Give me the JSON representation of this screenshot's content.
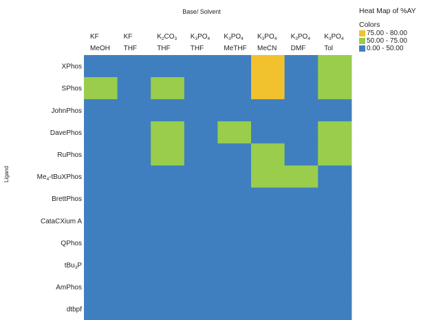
{
  "chart_data": {
    "type": "heatmap",
    "title": "Base/ Solvent",
    "ylabel": "Ligand",
    "columns": [
      {
        "base": "KF",
        "base_parts": [
          "KF"
        ],
        "solvent": "MeOH"
      },
      {
        "base": "KF",
        "base_parts": [
          "KF"
        ],
        "solvent": "THF"
      },
      {
        "base": "K2CO3",
        "base_parts": [
          "K",
          "2",
          "CO",
          "3"
        ],
        "solvent": "THF"
      },
      {
        "base": "K3PO4",
        "base_parts": [
          "K",
          "3",
          "PO",
          "4"
        ],
        "solvent": "THF"
      },
      {
        "base": "K3PO4",
        "base_parts": [
          "K",
          "3",
          "PO",
          "4"
        ],
        "solvent": "MeTHF"
      },
      {
        "base": "K3PO4",
        "base_parts": [
          "K",
          "3",
          "PO",
          "4"
        ],
        "solvent": "MeCN"
      },
      {
        "base": "K3PO4",
        "base_parts": [
          "K",
          "3",
          "PO",
          "4"
        ],
        "solvent": "DMF"
      },
      {
        "base": "K3PO4",
        "base_parts": [
          "K",
          "3",
          "PO",
          "4"
        ],
        "solvent": "Tol"
      }
    ],
    "rows": [
      {
        "name": "XPhos",
        "parts": [
          "XPhos"
        ]
      },
      {
        "name": "SPhos",
        "parts": [
          "SPhos"
        ]
      },
      {
        "name": "JohnPhos",
        "parts": [
          "JohnPhos"
        ]
      },
      {
        "name": "DavePhos",
        "parts": [
          "DavePhos"
        ]
      },
      {
        "name": "RuPhos",
        "parts": [
          "RuPhos"
        ]
      },
      {
        "name": "Me4-tBuXPhos",
        "parts": [
          "Me",
          "4",
          "-tBuXPhos"
        ]
      },
      {
        "name": "BrettPhos",
        "parts": [
          "BrettPhos"
        ]
      },
      {
        "name": "CataCXium A",
        "parts": [
          "CataCXium A"
        ]
      },
      {
        "name": "QPhos",
        "parts": [
          "QPhos"
        ]
      },
      {
        "name": "tBu3P",
        "parts": [
          "tBu",
          "3",
          "P"
        ]
      },
      {
        "name": "AmPhos",
        "parts": [
          "AmPhos"
        ]
      },
      {
        "name": "dtbpf",
        "parts": [
          "dtbpf"
        ]
      }
    ],
    "bins": [
      "0.00 - 50.00",
      "50.00 - 75.00",
      "75.00 - 80.00"
    ],
    "cells": [
      [
        0,
        0,
        0,
        0,
        0,
        2,
        0,
        1
      ],
      [
        1,
        0,
        1,
        0,
        0,
        2,
        0,
        1
      ],
      [
        0,
        0,
        0,
        0,
        0,
        0,
        0,
        0
      ],
      [
        0,
        0,
        1,
        0,
        1,
        0,
        0,
        1
      ],
      [
        0,
        0,
        1,
        0,
        0,
        1,
        0,
        1
      ],
      [
        0,
        0,
        0,
        0,
        0,
        1,
        1,
        0
      ],
      [
        0,
        0,
        0,
        0,
        0,
        0,
        0,
        0
      ],
      [
        0,
        0,
        0,
        0,
        0,
        0,
        0,
        0
      ],
      [
        0,
        0,
        0,
        0,
        0,
        0,
        0,
        0
      ],
      [
        0,
        0,
        0,
        0,
        0,
        0,
        0,
        0
      ],
      [
        0,
        0,
        0,
        0,
        0,
        0,
        0,
        0
      ],
      [
        0,
        0,
        0,
        0,
        0,
        0,
        0,
        0
      ]
    ],
    "legend": {
      "title": "Heat Map of %AY",
      "subtitle": "Colors",
      "placement": "top-right",
      "items": [
        {
          "label": "75.00 - 80.00",
          "color": "#f2c12e"
        },
        {
          "label": "50.00 - 75.00",
          "color": "#9acd4c"
        },
        {
          "label": "0.00 - 50.00",
          "color": "#3f7fbf"
        }
      ]
    },
    "colors": [
      "#3f7fbf",
      "#9acd4c",
      "#f2c12e"
    ]
  }
}
